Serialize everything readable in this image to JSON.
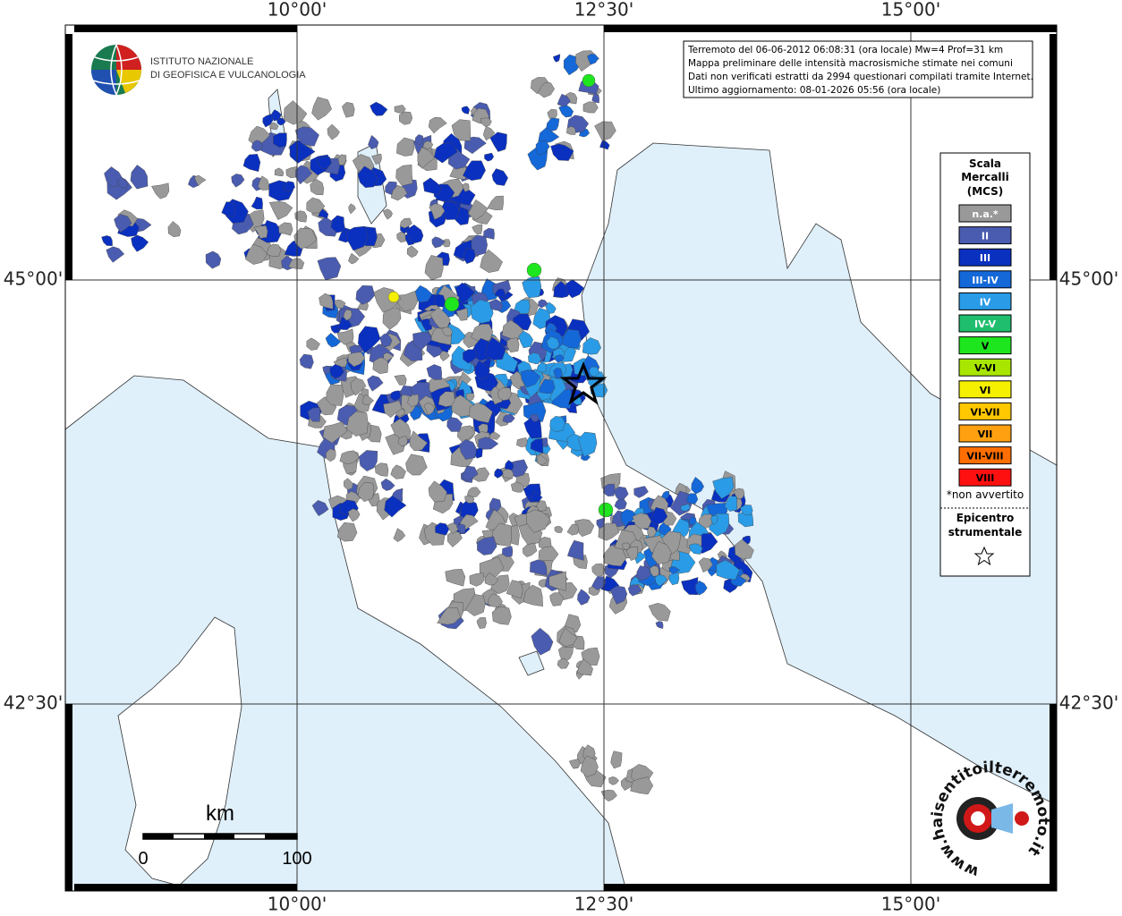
{
  "axes": {
    "top": [
      "10°00'",
      "12°30'",
      "15°00'"
    ],
    "bottom": [
      "10°00'",
      "12°30'",
      "15°00'"
    ],
    "left": [
      "45°00'",
      "42°30'"
    ],
    "right": [
      "45°00'",
      "42°30'"
    ]
  },
  "info_box": [
    "Terremoto del 06-06-2012 06:08:31 (ora locale) Mw=4 Prof=31 km",
    "Mappa preliminare delle intensità macrosismiche stimate nei comuni",
    "Dati non verificati estratti da 2994 questionari compilati tramite Internet.",
    "Ultimo aggiornamento: 08-01-2026 05:56 (ora locale)"
  ],
  "logo": {
    "line1": "ISTITUTO NAZIONALE",
    "line2": "DI GEOFISICA E VULCANOLOGIA"
  },
  "legend": {
    "title": [
      "Scala",
      "Mercalli",
      "(MCS)"
    ],
    "items": [
      {
        "label": "n.a.*",
        "color": "#999999"
      },
      {
        "label": "II",
        "color": "#4a5cb0"
      },
      {
        "label": "III",
        "color": "#0a30c0"
      },
      {
        "label": "III-IV",
        "color": "#1468d8"
      },
      {
        "label": "IV",
        "color": "#2a9be6"
      },
      {
        "label": "IV-V",
        "color": "#1ebe6e"
      },
      {
        "label": "V",
        "color": "#1ee61e"
      },
      {
        "label": "V-VI",
        "color": "#a8e600"
      },
      {
        "label": "VI",
        "color": "#f5f000"
      },
      {
        "label": "VI-VII",
        "color": "#ffc800"
      },
      {
        "label": "VII",
        "color": "#ffa010"
      },
      {
        "label": "VII-VIII",
        "color": "#ff6e00"
      },
      {
        "label": "VIII",
        "color": "#ff1010"
      }
    ],
    "note": "*non avvertito",
    "epicenter": [
      "Epicentro",
      "strumentale"
    ]
  },
  "scale_bar": {
    "unit": "km",
    "start": "0",
    "end": "100"
  },
  "badge": "www.haisentitoilterremoto.it"
}
